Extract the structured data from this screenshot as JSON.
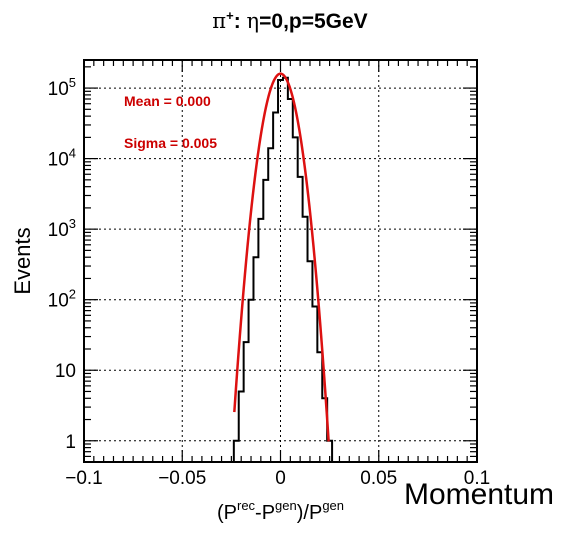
{
  "chart_data": {
    "type": "line",
    "title": {
      "particle": "π",
      "charge": "+",
      "sep": ": ",
      "eta_symbol": "η",
      "rest": "=0,p=5GeV"
    },
    "xlabel": {
      "p1": "(P",
      "sup1": "rec",
      "p2": "-P",
      "sup2": "gen",
      "p3": ")/P",
      "sup3": "gen"
    },
    "ylabel": "Events",
    "xlim": [
      -0.1,
      0.1
    ],
    "ylim": [
      0.5,
      250000
    ],
    "yscale": "log",
    "grid": true,
    "x_ticks": [
      -0.1,
      -0.05,
      0,
      0.05,
      0.1
    ],
    "x_tick_labels": [
      "−0.1",
      "−0.05",
      "0",
      "0.05",
      "0.1"
    ],
    "y_ticks": [
      1,
      10,
      100,
      1000,
      10000,
      100000
    ],
    "y_tick_labels": [
      {
        "base": "1",
        "exp": ""
      },
      {
        "base": "10",
        "exp": ""
      },
      {
        "base": "10",
        "exp": "2"
      },
      {
        "base": "10",
        "exp": "3"
      },
      {
        "base": "10",
        "exp": "4"
      },
      {
        "base": "10",
        "exp": "5"
      }
    ],
    "annotations": [
      "Mean = 0.000",
      "Sigma = 0.005"
    ],
    "annotation_color": "#cc0000",
    "series": [
      {
        "kind": "histogram",
        "color": "#000000",
        "bin_width": 0.0025,
        "bins": [
          [
            -0.0225,
            1
          ],
          [
            -0.02,
            5
          ],
          [
            -0.0175,
            25
          ],
          [
            -0.015,
            100
          ],
          [
            -0.0125,
            400
          ],
          [
            -0.01,
            1400
          ],
          [
            -0.0075,
            5000
          ],
          [
            -0.005,
            14000
          ],
          [
            -0.0025,
            45000
          ],
          [
            0,
            130000
          ],
          [
            0.0025,
            140000
          ],
          [
            0.005,
            70000
          ],
          [
            0.0075,
            20000
          ],
          [
            0.01,
            5500
          ],
          [
            0.0125,
            1500
          ],
          [
            0.015,
            350
          ],
          [
            0.0175,
            80
          ],
          [
            0.02,
            18
          ],
          [
            0.0225,
            4
          ],
          [
            0.025,
            1
          ]
        ]
      },
      {
        "kind": "fit",
        "color": "#dd1111",
        "peak": 160000,
        "mean": 0.0,
        "sigma": 0.005,
        "x_range": [
          -0.0235,
          0.0245
        ]
      }
    ]
  },
  "caption": "Momentum"
}
